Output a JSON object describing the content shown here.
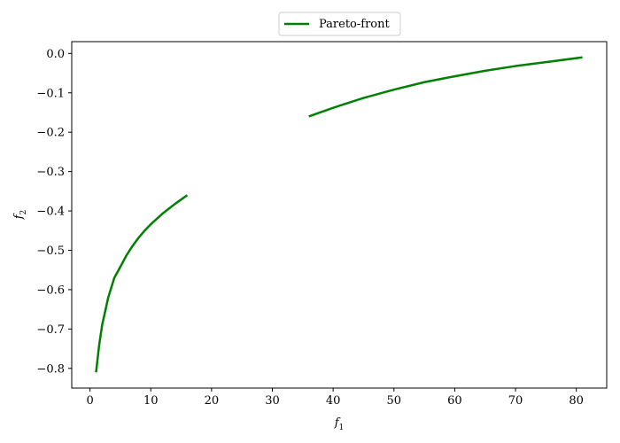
{
  "chart_data": {
    "type": "line",
    "title": "",
    "xlabel": "f",
    "xlabel_sub": "1",
    "ylabel": "f",
    "ylabel_sub": "2",
    "xlim": [
      -3,
      85
    ],
    "ylim": [
      -0.85,
      0.03
    ],
    "xticks": [
      0,
      10,
      20,
      30,
      40,
      50,
      60,
      70,
      80
    ],
    "xtick_labels": [
      "0",
      "10",
      "20",
      "30",
      "40",
      "50",
      "60",
      "70",
      "80"
    ],
    "yticks": [
      0.0,
      -0.1,
      -0.2,
      -0.3,
      -0.4,
      -0.5,
      -0.6,
      -0.7,
      -0.8
    ],
    "ytick_labels": [
      "0.0",
      "−0.1",
      "−0.2",
      "−0.3",
      "−0.4",
      "−0.5",
      "−0.6",
      "−0.7",
      "−0.8"
    ],
    "grid": false,
    "legend_position": "top-center-outside",
    "color": "#008000",
    "series": [
      {
        "name": "Pareto-front",
        "segments": [
          [
            [
              1,
              -0.81
            ],
            [
              1.5,
              -0.742
            ],
            [
              2,
              -0.69
            ],
            [
              3,
              -0.62
            ],
            [
              4,
              -0.57
            ],
            [
              5,
              -0.542
            ],
            [
              6,
              -0.513
            ],
            [
              7,
              -0.489
            ],
            [
              8,
              -0.468
            ],
            [
              9,
              -0.45
            ],
            [
              10,
              -0.434
            ],
            [
              11,
              -0.42
            ],
            [
              12,
              -0.406
            ],
            [
              13,
              -0.394
            ],
            [
              14,
              -0.382
            ],
            [
              15,
              -0.371
            ],
            [
              16,
              -0.36
            ]
          ],
          [
            [
              36,
              -0.16
            ],
            [
              40,
              -0.138
            ],
            [
              45,
              -0.113
            ],
            [
              50,
              -0.092
            ],
            [
              55,
              -0.073
            ],
            [
              60,
              -0.058
            ],
            [
              65,
              -0.044
            ],
            [
              70,
              -0.032
            ],
            [
              75,
              -0.022
            ],
            [
              81,
              -0.01
            ]
          ]
        ]
      }
    ]
  }
}
